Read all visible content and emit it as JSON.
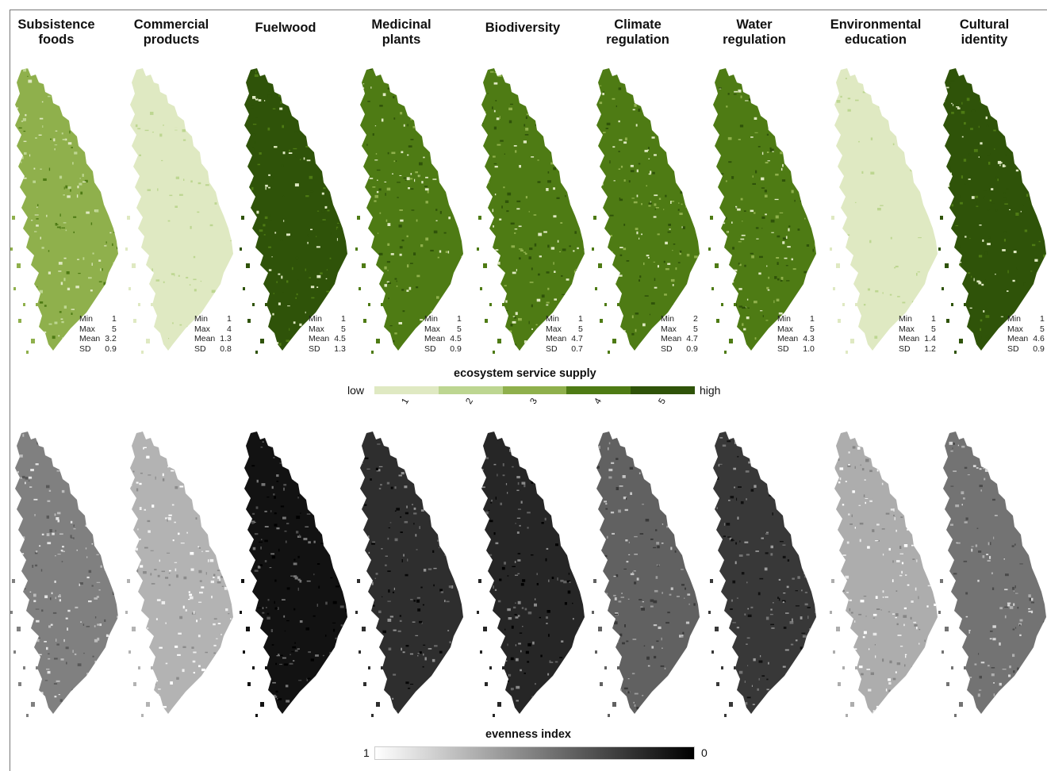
{
  "colors": {
    "supply_ramp": [
      "#dfe9c2",
      "#bdd691",
      "#8fb04c",
      "#4e7b14",
      "#2f5309"
    ],
    "evenness_ramp": [
      "#ffffff",
      "#000000"
    ]
  },
  "columns": [
    {
      "title": "Subsistence\nfoods",
      "stats": {
        "min": "1",
        "max": "5",
        "mean": "3.2",
        "sd": "0.9"
      },
      "supply_level": 3,
      "supply_mix": [
        0.18,
        0.4,
        0.42
      ],
      "evenness_shade": 0.5
    },
    {
      "title": "Commercial\nproducts",
      "stats": {
        "min": "1",
        "max": "4",
        "mean": "1.3",
        "sd": "0.8"
      },
      "supply_level": 1,
      "supply_mix": [
        0.85,
        0.13,
        0.02
      ],
      "evenness_shade": 0.3
    },
    {
      "title": "Fuelwood",
      "stats": {
        "min": "1",
        "max": "5",
        "mean": "4.5",
        "sd": "1.3"
      },
      "supply_level": 5,
      "supply_mix": [
        0.02,
        0.12,
        0.86
      ],
      "evenness_shade": 0.93
    },
    {
      "title": "Medicinal\nplants",
      "stats": {
        "min": "1",
        "max": "5",
        "mean": "4.5",
        "sd": "0.9"
      },
      "supply_level": 4,
      "supply_mix": [
        0.05,
        0.3,
        0.65
      ],
      "evenness_shade": 0.82
    },
    {
      "title": "Biodiversity",
      "stats": {
        "min": "1",
        "max": "5",
        "mean": "4.7",
        "sd": "0.7"
      },
      "supply_level": 4,
      "supply_mix": [
        0.02,
        0.2,
        0.78
      ],
      "evenness_shade": 0.85
    },
    {
      "title": "Climate\nregulation",
      "stats": {
        "min": "2",
        "max": "5",
        "mean": "4.7",
        "sd": "0.9"
      },
      "supply_level": 4,
      "supply_mix": [
        0.02,
        0.2,
        0.78
      ],
      "evenness_shade": 0.62
    },
    {
      "title": "Water\nregulation",
      "stats": {
        "min": "1",
        "max": "5",
        "mean": "4.3",
        "sd": "1.0"
      },
      "supply_level": 4,
      "supply_mix": [
        0.1,
        0.3,
        0.6
      ],
      "evenness_shade": 0.78
    },
    {
      "title": "Environmental\neducation",
      "stats": {
        "min": "1",
        "max": "5",
        "mean": "1.4",
        "sd": "1.2"
      },
      "supply_level": 1,
      "supply_mix": [
        0.88,
        0.08,
        0.04
      ],
      "evenness_shade": 0.32
    },
    {
      "title": "Cultural\nidentity",
      "stats": {
        "min": "1",
        "max": "5",
        "mean": "4.6",
        "sd": "0.9"
      },
      "supply_level": 5,
      "supply_mix": [
        0.04,
        0.26,
        0.7
      ],
      "evenness_shade": 0.55
    }
  ],
  "stat_labels": {
    "min": "Min",
    "max": "Max",
    "mean": "Mean",
    "sd": "SD"
  },
  "supply_legend": {
    "title": "ecosystem service supply",
    "low": "low",
    "high": "high",
    "ticks": [
      "1",
      "2",
      "3",
      "4",
      "5"
    ]
  },
  "evenness_legend": {
    "title": "evenness index",
    "left": "1",
    "right": "0"
  }
}
